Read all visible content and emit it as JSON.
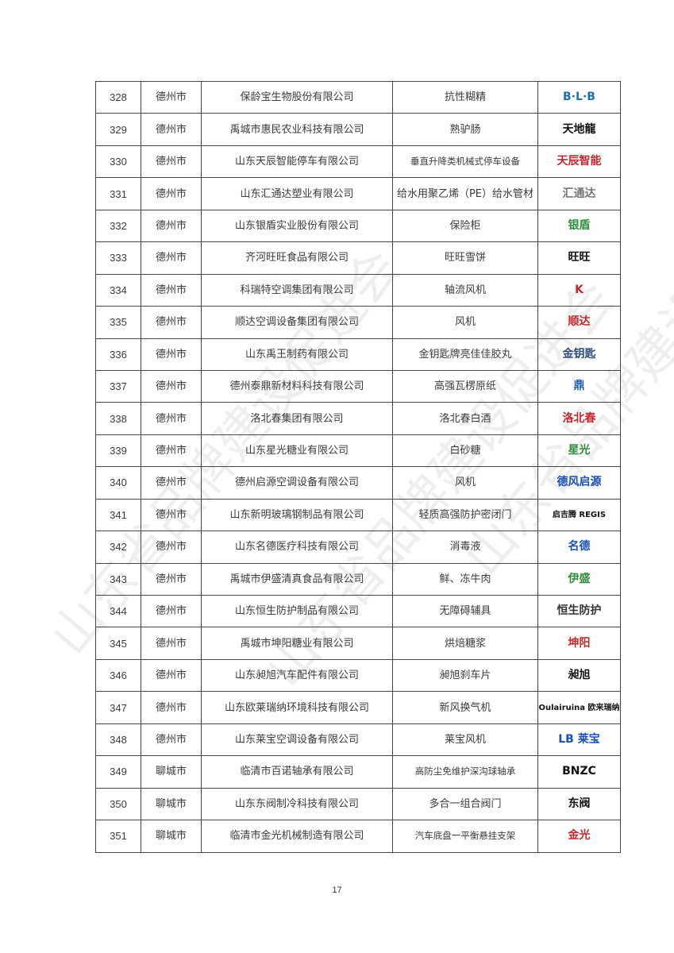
{
  "watermark": "山东省品牌建设促进会",
  "rows": [
    {
      "no": "328",
      "city": "德州市",
      "company": "保龄宝生物股份有限公司",
      "product": "抗性糊精",
      "logo": "B·L·B",
      "logo_color": "#1a6fb5"
    },
    {
      "no": "329",
      "city": "德州市",
      "company": "禹城市惠民农业科技有限公司",
      "product": "熟驴肠",
      "logo": "天地龍",
      "logo_color": "#111111"
    },
    {
      "no": "330",
      "city": "德州市",
      "company": "山东天辰智能停车有限公司",
      "product": "垂直升降类机械式停车设备",
      "logo": "天辰智能",
      "logo_color": "#c0282d"
    },
    {
      "no": "331",
      "city": "德州市",
      "company": "山东汇通达塑业有限公司",
      "product": "给水用聚乙烯（PE）给水管材",
      "logo": "汇通达",
      "logo_color": "#777777"
    },
    {
      "no": "332",
      "city": "德州市",
      "company": "山东银盾实业股份有限公司",
      "product": "保险柜",
      "logo": "银盾",
      "logo_color": "#2e8b3a"
    },
    {
      "no": "333",
      "city": "德州市",
      "company": "齐河旺旺食品有限公司",
      "product": "旺旺雪饼",
      "logo": "旺旺",
      "logo_color": "#111111"
    },
    {
      "no": "334",
      "city": "德州市",
      "company": "科瑞特空调集团有限公司",
      "product": "轴流风机",
      "logo": "K",
      "logo_color": "#c0282d"
    },
    {
      "no": "335",
      "city": "德州市",
      "company": "顺达空调设备集团有限公司",
      "product": "风机",
      "logo": "顺达",
      "logo_color": "#c0282d"
    },
    {
      "no": "336",
      "city": "德州市",
      "company": "山东禹王制药有限公司",
      "product": "金钥匙牌亮佳佳胶丸",
      "logo": "金钥匙",
      "logo_color": "#2a4d7a"
    },
    {
      "no": "337",
      "city": "德州市",
      "company": "德州泰鼎新材料科技有限公司",
      "product": "高强瓦楞原纸",
      "logo": "鼎",
      "logo_color": "#1a5fb5"
    },
    {
      "no": "338",
      "city": "德州市",
      "company": "洛北春集团有限公司",
      "product": "洛北春白酒",
      "logo": "洛北春",
      "logo_color": "#c0282d"
    },
    {
      "no": "339",
      "city": "德州市",
      "company": "山东星光糖业有限公司",
      "product": "白砂糖",
      "logo": "星光",
      "logo_color": "#2e8b3a"
    },
    {
      "no": "340",
      "city": "德州市",
      "company": "德州启源空调设备有限公司",
      "product": "风机",
      "logo": "德风启源",
      "logo_color": "#1a4fb5"
    },
    {
      "no": "341",
      "city": "德州市",
      "company": "山东新明玻璃钢制品有限公司",
      "product": "轻质高强防护密闭门",
      "logo": "启吉腾 REGIS",
      "logo_color": "#111111"
    },
    {
      "no": "342",
      "city": "德州市",
      "company": "山东名德医疗科技有限公司",
      "product": "消毒液",
      "logo": "名德",
      "logo_color": "#1a4fb5"
    },
    {
      "no": "343",
      "city": "德州市",
      "company": "禹城市伊盛清真食品有限公司",
      "product": "鲜、冻牛肉",
      "logo": "伊盛",
      "logo_color": "#2e8b3a"
    },
    {
      "no": "344",
      "city": "德州市",
      "company": "山东恒生防护制品有限公司",
      "product": "无障碍辅具",
      "logo": "恒生防护",
      "logo_color": "#333333"
    },
    {
      "no": "345",
      "city": "德州市",
      "company": "禹城市坤阳糖业有限公司",
      "product": "烘焙糖浆",
      "logo": "坤阳",
      "logo_color": "#c0282d"
    },
    {
      "no": "346",
      "city": "德州市",
      "company": "山东昶旭汽车配件有限公司",
      "product": "昶旭刹车片",
      "logo": "昶旭",
      "logo_color": "#111111"
    },
    {
      "no": "347",
      "city": "德州市",
      "company": "山东欧莱瑞纳环境科技有限公司",
      "product": "新风换气机",
      "logo": "Oulairuina 欧来瑞纳",
      "logo_color": "#111111"
    },
    {
      "no": "348",
      "city": "德州市",
      "company": "山东莱宝空调设备有限公司",
      "product": "莱宝风机",
      "logo": "LB 莱宝",
      "logo_color": "#1a4fb5"
    },
    {
      "no": "349",
      "city": "聊城市",
      "company": "临清市百诺轴承有限公司",
      "product": "高防尘免维护深沟球轴承",
      "logo": "BNZC",
      "logo_color": "#111111"
    },
    {
      "no": "350",
      "city": "聊城市",
      "company": "山东东阀制冷科技有限公司",
      "product": "多合一组合阀门",
      "logo": "东阀",
      "logo_color": "#111111"
    },
    {
      "no": "351",
      "city": "聊城市",
      "company": "临清市金光机械制造有限公司",
      "product": "汽车底盘一平衡悬挂支架",
      "logo": "金光",
      "logo_color": "#c0282d"
    }
  ],
  "page_number": "17"
}
